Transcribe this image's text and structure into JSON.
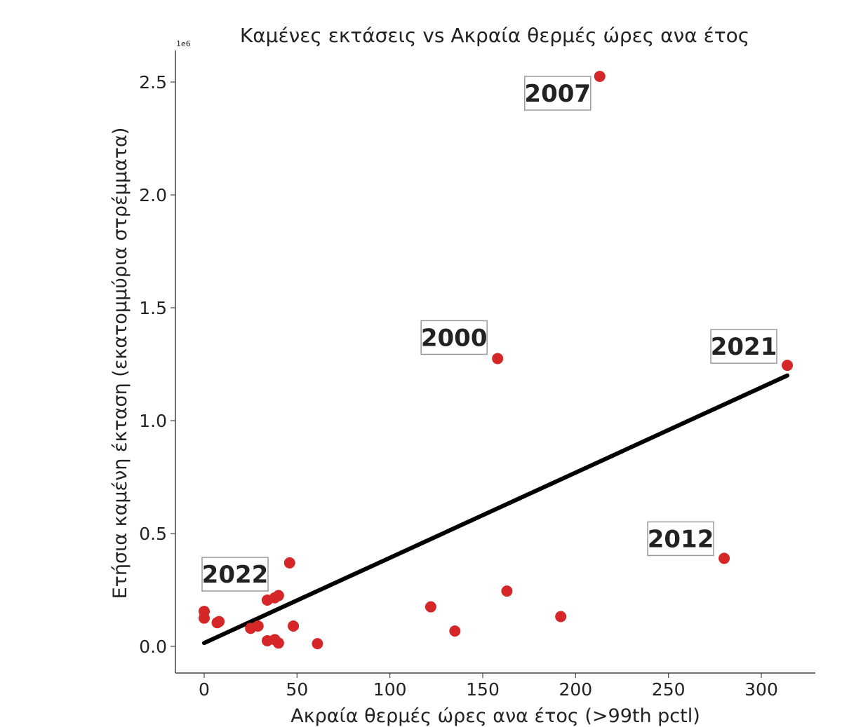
{
  "chart_data": {
    "type": "scatter",
    "title": "Καμένες εκτάσεις vs Ακραία θερμές ώρες ανα έτος",
    "xlabel": "Ακραία θερμές ώρες ανα έτος (>99th pctl)",
    "ylabel": "Ετήσια καμένη έκταση (εκατομμύρια στρέμματα)",
    "y_offset_label": "1e6",
    "xlim": [
      -15,
      330
    ],
    "ylim": [
      -0.12,
      2.6
    ],
    "xticks": [
      0,
      50,
      100,
      150,
      200,
      250,
      300
    ],
    "xtick_labels": [
      "0",
      "50",
      "100",
      "150",
      "200",
      "250",
      "300"
    ],
    "yticks": [
      0.0,
      0.5,
      1.0,
      1.5,
      2.0,
      2.5
    ],
    "ytick_labels": [
      "0.0",
      "0.5",
      "1.0",
      "1.5",
      "2.0",
      "2.5"
    ],
    "grid": false,
    "point_color": "#d62728",
    "line_color": "#000000",
    "points": [
      {
        "x": 0,
        "y": 0.155
      },
      {
        "x": 0,
        "y": 0.125
      },
      {
        "x": 7,
        "y": 0.105
      },
      {
        "x": 8,
        "y": 0.11
      },
      {
        "x": 25,
        "y": 0.08
      },
      {
        "x": 29,
        "y": 0.09
      },
      {
        "x": 34,
        "y": 0.205
      },
      {
        "x": 34,
        "y": 0.025
      },
      {
        "x": 38,
        "y": 0.03
      },
      {
        "x": 38,
        "y": 0.215
      },
      {
        "x": 40,
        "y": 0.225
      },
      {
        "x": 40,
        "y": 0.015
      },
      {
        "x": 46,
        "y": 0.37
      },
      {
        "x": 48,
        "y": 0.09
      },
      {
        "x": 61,
        "y": 0.012
      },
      {
        "x": 122,
        "y": 0.175
      },
      {
        "x": 135,
        "y": 0.068
      },
      {
        "x": 158,
        "y": 1.275
      },
      {
        "x": 163,
        "y": 0.245
      },
      {
        "x": 192,
        "y": 0.132
      },
      {
        "x": 213,
        "y": 2.525
      },
      {
        "x": 280,
        "y": 0.39
      },
      {
        "x": 314,
        "y": 1.245
      }
    ],
    "trendline": {
      "x": [
        0,
        314
      ],
      "y": [
        0.015,
        1.2
      ]
    },
    "annotations": [
      {
        "text": "2007",
        "x": 213,
        "y": 2.525
      },
      {
        "text": "2000",
        "x": 158,
        "y": 1.275
      },
      {
        "text": "2021",
        "x": 314,
        "y": 1.245
      },
      {
        "text": "2012",
        "x": 280,
        "y": 0.39
      },
      {
        "text": "2022",
        "x": 0,
        "y": 0.155
      }
    ]
  }
}
